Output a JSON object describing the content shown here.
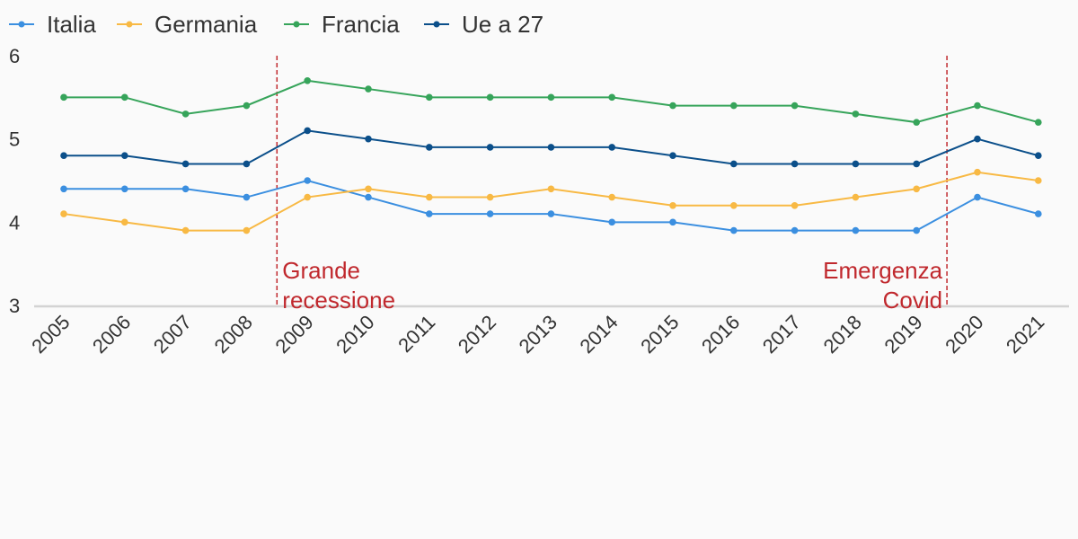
{
  "chart_data": {
    "type": "line",
    "x": [
      "2005",
      "2006",
      "2007",
      "2008",
      "2009",
      "2010",
      "2011",
      "2012",
      "2013",
      "2014",
      "2015",
      "2016",
      "2017",
      "2018",
      "2019",
      "2020",
      "2021"
    ],
    "series": [
      {
        "name": "Italia",
        "color": "#3b8fe0",
        "values": [
          4.4,
          4.4,
          4.4,
          4.3,
          4.5,
          4.3,
          4.1,
          4.1,
          4.1,
          4.0,
          4.0,
          3.9,
          3.9,
          3.9,
          3.9,
          4.3,
          4.1
        ]
      },
      {
        "name": "Germania",
        "color": "#f8b944",
        "values": [
          4.1,
          4.0,
          3.9,
          3.9,
          4.3,
          4.4,
          4.3,
          4.3,
          4.4,
          4.3,
          4.2,
          4.2,
          4.2,
          4.3,
          4.4,
          4.6,
          4.5
        ]
      },
      {
        "name": "Francia",
        "color": "#36a45a",
        "values": [
          5.5,
          5.5,
          5.3,
          5.4,
          5.7,
          5.6,
          5.5,
          5.5,
          5.5,
          5.5,
          5.4,
          5.4,
          5.4,
          5.3,
          5.2,
          5.4,
          5.2
        ]
      },
      {
        "name": "Ue a 27",
        "color": "#0b4f8a",
        "values": [
          4.8,
          4.8,
          4.7,
          4.7,
          5.1,
          5.0,
          4.9,
          4.9,
          4.9,
          4.9,
          4.8,
          4.7,
          4.7,
          4.7,
          4.7,
          5.0,
          4.8
        ]
      }
    ],
    "ylim": [
      3,
      6
    ],
    "yticks": [
      "3",
      "4",
      "5",
      "6"
    ],
    "grid": false,
    "legend_position": "top-left",
    "annotations": [
      {
        "lines": [
          "Grande",
          "recessione"
        ],
        "between": [
          "2008",
          "2009"
        ],
        "align": "left",
        "color": "#c0282d"
      },
      {
        "lines": [
          "Emergenza",
          "Covid"
        ],
        "between": [
          "2019",
          "2020"
        ],
        "align": "right",
        "color": "#c0282d"
      }
    ]
  }
}
